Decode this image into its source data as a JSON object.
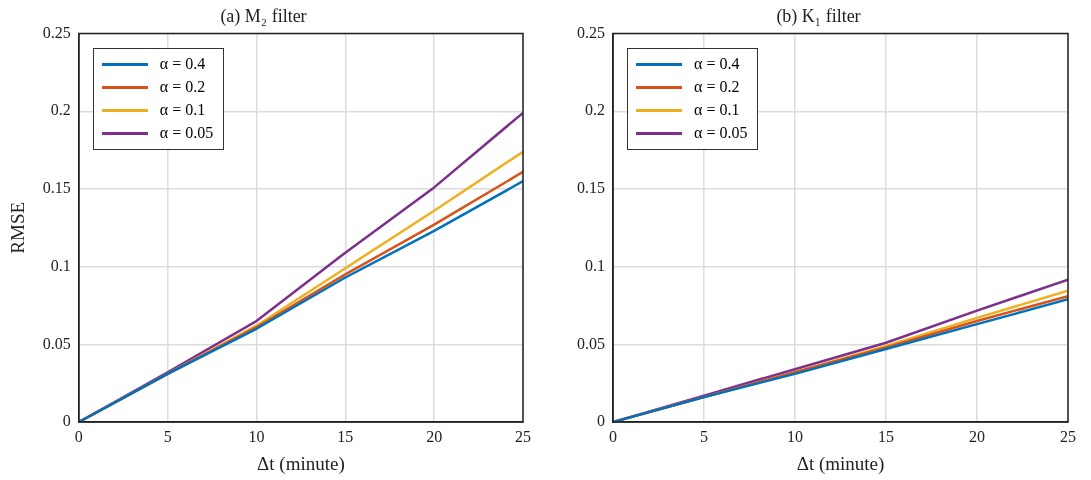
{
  "chart_data": [
    {
      "type": "line",
      "title": "(a) M₂ filter",
      "xlabel": "Δt (minute)",
      "ylabel": "RMSE",
      "x": [
        0,
        5,
        10,
        15,
        20,
        25
      ],
      "xlim": [
        0,
        25
      ],
      "xticks": [
        0,
        5,
        10,
        15,
        20,
        25
      ],
      "ylim": [
        0,
        0.25
      ],
      "yticks": [
        0,
        0.05,
        0.1,
        0.15,
        0.2,
        0.25
      ],
      "grid": true,
      "legend": "top left",
      "marker": "none",
      "line_style": "solid",
      "series": [
        {
          "name": "α = 0.4",
          "color": "#0072bd",
          "values": [
            0,
            0.031,
            0.06,
            0.093,
            0.123,
            0.155
          ]
        },
        {
          "name": "α = 0.2",
          "color": "#d95319",
          "values": [
            0,
            0.031,
            0.061,
            0.095,
            0.127,
            0.161
          ]
        },
        {
          "name": "α = 0.1",
          "color": "#edb120",
          "values": [
            0,
            0.031,
            0.062,
            0.099,
            0.136,
            0.174
          ]
        },
        {
          "name": "α = 0.05",
          "color": "#7e2f8e",
          "values": [
            0,
            0.032,
            0.065,
            0.109,
            0.151,
            0.199
          ]
        }
      ]
    },
    {
      "type": "line",
      "title": "(b) K₁ filter",
      "xlabel": "Δt (minute)",
      "x": [
        0,
        5,
        10,
        15,
        20,
        25
      ],
      "xlim": [
        0,
        25
      ],
      "xticks": [
        0,
        5,
        10,
        15,
        20,
        25
      ],
      "ylim": [
        0,
        0.25
      ],
      "yticks": [
        0,
        0.05,
        0.1,
        0.15,
        0.2,
        0.25
      ],
      "grid": true,
      "legend": "top left",
      "marker": "none",
      "line_style": "solid",
      "series": [
        {
          "name": "α = 0.4",
          "color": "#0072bd",
          "values": [
            0,
            0.016,
            0.031,
            0.047,
            0.063,
            0.079
          ]
        },
        {
          "name": "α = 0.2",
          "color": "#d95319",
          "values": [
            0,
            0.016,
            0.032,
            0.048,
            0.065,
            0.081
          ]
        },
        {
          "name": "α = 0.1",
          "color": "#edb120",
          "values": [
            0,
            0.016,
            0.032,
            0.049,
            0.067,
            0.0845
          ]
        },
        {
          "name": "α = 0.05",
          "color": "#7e2f8e",
          "values": [
            0,
            0.017,
            0.034,
            0.051,
            0.0717,
            0.0916
          ]
        }
      ]
    }
  ]
}
